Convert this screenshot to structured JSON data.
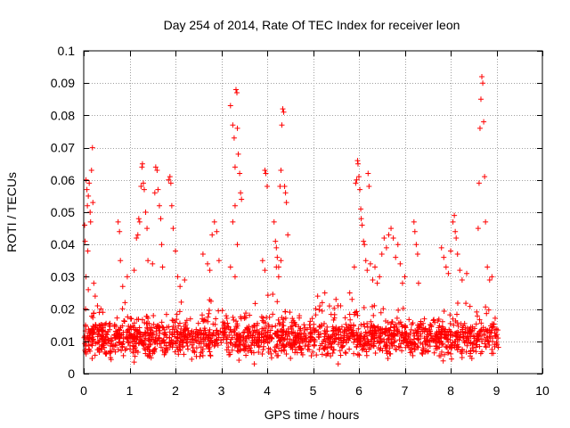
{
  "chart_data": {
    "type": "scatter",
    "title": "Day 254 of 2014, Rate Of TEC Index for receiver leon",
    "xlabel": "GPS time / hours",
    "ylabel": "ROTI / TECUs",
    "xlim": [
      0,
      10
    ],
    "ylim": [
      0,
      0.1
    ],
    "grid": true,
    "marker": "+",
    "color": "#ff0000",
    "x_ticks": [
      0,
      1,
      2,
      3,
      4,
      5,
      6,
      7,
      8,
      9,
      10
    ],
    "x_tick_labels": [
      "0",
      "1",
      "2",
      "3",
      "4",
      "5",
      "6",
      "7",
      "8",
      "9",
      "10"
    ],
    "y_ticks": [
      0,
      0.01,
      0.02,
      0.03,
      0.04,
      0.05,
      0.06,
      0.07,
      0.08,
      0.09,
      0.1
    ],
    "y_tick_labels": [
      "0",
      "0.01",
      "0.02",
      "0.03",
      "0.04",
      "0.05",
      "0.06",
      "0.07",
      "0.08",
      "0.09",
      "0.1"
    ],
    "series": [
      {
        "name": "leon",
        "baseline": {
          "x_range": [
            0,
            9.05
          ],
          "mean": 0.011,
          "spread": 0.006,
          "count": 1800
        },
        "points": [
          [
            0.02,
            0.046
          ],
          [
            0.03,
            0.041
          ],
          [
            0.05,
            0.06
          ],
          [
            0.07,
            0.057
          ],
          [
            0.08,
            0.052
          ],
          [
            0.09,
            0.038
          ],
          [
            0.1,
            0.055
          ],
          [
            0.12,
            0.059
          ],
          [
            0.14,
            0.05
          ],
          [
            0.15,
            0.047
          ],
          [
            0.17,
            0.063
          ],
          [
            0.19,
            0.07
          ],
          [
            0.2,
            0.053
          ],
          [
            0.22,
            0.028
          ],
          [
            0.25,
            0.024
          ],
          [
            0.3,
            0.021
          ],
          [
            0.05,
            0.03
          ],
          [
            0.1,
            0.026
          ],
          [
            0.75,
            0.047
          ],
          [
            0.78,
            0.044
          ],
          [
            0.8,
            0.035
          ],
          [
            0.85,
            0.027
          ],
          [
            0.9,
            0.022
          ],
          [
            0.95,
            0.03
          ],
          [
            1.1,
            0.032
          ],
          [
            1.15,
            0.042
          ],
          [
            1.18,
            0.043
          ],
          [
            1.2,
            0.048
          ],
          [
            1.22,
            0.047
          ],
          [
            1.25,
            0.058
          ],
          [
            1.27,
            0.064
          ],
          [
            1.28,
            0.065
          ],
          [
            1.3,
            0.059
          ],
          [
            1.32,
            0.057
          ],
          [
            1.35,
            0.05
          ],
          [
            1.38,
            0.045
          ],
          [
            1.4,
            0.035
          ],
          [
            1.5,
            0.034
          ],
          [
            1.55,
            0.056
          ],
          [
            1.57,
            0.064
          ],
          [
            1.6,
            0.063
          ],
          [
            1.62,
            0.057
          ],
          [
            1.65,
            0.052
          ],
          [
            1.68,
            0.048
          ],
          [
            1.7,
            0.04
          ],
          [
            1.72,
            0.033
          ],
          [
            1.85,
            0.06
          ],
          [
            1.88,
            0.061
          ],
          [
            1.9,
            0.059
          ],
          [
            1.92,
            0.052
          ],
          [
            1.95,
            0.045
          ],
          [
            2.0,
            0.038
          ],
          [
            2.05,
            0.03
          ],
          [
            2.1,
            0.027
          ],
          [
            2.2,
            0.029
          ],
          [
            2.6,
            0.037
          ],
          [
            2.7,
            0.034
          ],
          [
            2.75,
            0.032
          ],
          [
            2.8,
            0.043
          ],
          [
            2.85,
            0.047
          ],
          [
            2.9,
            0.044
          ],
          [
            2.95,
            0.035
          ],
          [
            3.2,
            0.083
          ],
          [
            3.25,
            0.077
          ],
          [
            3.28,
            0.073
          ],
          [
            3.3,
            0.064
          ],
          [
            3.32,
            0.088
          ],
          [
            3.34,
            0.087
          ],
          [
            3.35,
            0.076
          ],
          [
            3.37,
            0.068
          ],
          [
            3.4,
            0.062
          ],
          [
            3.42,
            0.056
          ],
          [
            3.44,
            0.054
          ],
          [
            3.3,
            0.052
          ],
          [
            3.25,
            0.047
          ],
          [
            3.35,
            0.04
          ],
          [
            3.2,
            0.033
          ],
          [
            3.3,
            0.03
          ],
          [
            3.95,
            0.063
          ],
          [
            3.97,
            0.062
          ],
          [
            4.0,
            0.058
          ],
          [
            3.9,
            0.035
          ],
          [
            3.95,
            0.032
          ],
          [
            4.15,
            0.047
          ],
          [
            4.18,
            0.041
          ],
          [
            4.2,
            0.039
          ],
          [
            4.22,
            0.036
          ],
          [
            4.25,
            0.033
          ],
          [
            4.28,
            0.058
          ],
          [
            4.3,
            0.063
          ],
          [
            4.32,
            0.077
          ],
          [
            4.34,
            0.082
          ],
          [
            4.36,
            0.081
          ],
          [
            4.38,
            0.058
          ],
          [
            4.4,
            0.056
          ],
          [
            4.42,
            0.053
          ],
          [
            4.45,
            0.043
          ],
          [
            4.3,
            0.035
          ],
          [
            4.2,
            0.033
          ],
          [
            4.25,
            0.03
          ],
          [
            5.1,
            0.024
          ],
          [
            5.2,
            0.022
          ],
          [
            5.5,
            0.023
          ],
          [
            5.6,
            0.021
          ],
          [
            5.8,
            0.025
          ],
          [
            5.85,
            0.023
          ],
          [
            5.9,
            0.033
          ],
          [
            5.93,
            0.059
          ],
          [
            5.95,
            0.06
          ],
          [
            5.97,
            0.066
          ],
          [
            5.98,
            0.065
          ],
          [
            6.0,
            0.061
          ],
          [
            6.02,
            0.057
          ],
          [
            6.04,
            0.051
          ],
          [
            6.05,
            0.048
          ],
          [
            6.07,
            0.046
          ],
          [
            6.1,
            0.041
          ],
          [
            6.12,
            0.04
          ],
          [
            6.15,
            0.035
          ],
          [
            6.18,
            0.032
          ],
          [
            6.2,
            0.062
          ],
          [
            6.22,
            0.058
          ],
          [
            6.25,
            0.034
          ],
          [
            6.3,
            0.029
          ],
          [
            6.35,
            0.033
          ],
          [
            6.4,
            0.028
          ],
          [
            6.45,
            0.03
          ],
          [
            6.5,
            0.037
          ],
          [
            6.55,
            0.042
          ],
          [
            6.6,
            0.039
          ],
          [
            6.65,
            0.043
          ],
          [
            6.7,
            0.045
          ],
          [
            6.75,
            0.042
          ],
          [
            6.8,
            0.036
          ],
          [
            6.85,
            0.04
          ],
          [
            6.9,
            0.034
          ],
          [
            6.95,
            0.028
          ],
          [
            7.0,
            0.03
          ],
          [
            7.2,
            0.047
          ],
          [
            7.22,
            0.044
          ],
          [
            7.25,
            0.04
          ],
          [
            7.28,
            0.037
          ],
          [
            7.3,
            0.028
          ],
          [
            7.8,
            0.039
          ],
          [
            7.85,
            0.036
          ],
          [
            7.9,
            0.033
          ],
          [
            7.95,
            0.031
          ],
          [
            8.0,
            0.038
          ],
          [
            8.05,
            0.047
          ],
          [
            8.08,
            0.049
          ],
          [
            8.1,
            0.044
          ],
          [
            8.12,
            0.042
          ],
          [
            8.15,
            0.037
          ],
          [
            8.2,
            0.032
          ],
          [
            8.25,
            0.029
          ],
          [
            8.35,
            0.031
          ],
          [
            8.6,
            0.045
          ],
          [
            8.62,
            0.059
          ],
          [
            8.64,
            0.076
          ],
          [
            8.66,
            0.085
          ],
          [
            8.68,
            0.092
          ],
          [
            8.7,
            0.09
          ],
          [
            8.72,
            0.078
          ],
          [
            8.74,
            0.061
          ],
          [
            8.76,
            0.047
          ],
          [
            8.8,
            0.033
          ],
          [
            8.85,
            0.029
          ],
          [
            8.9,
            0.03
          ]
        ]
      }
    ]
  }
}
